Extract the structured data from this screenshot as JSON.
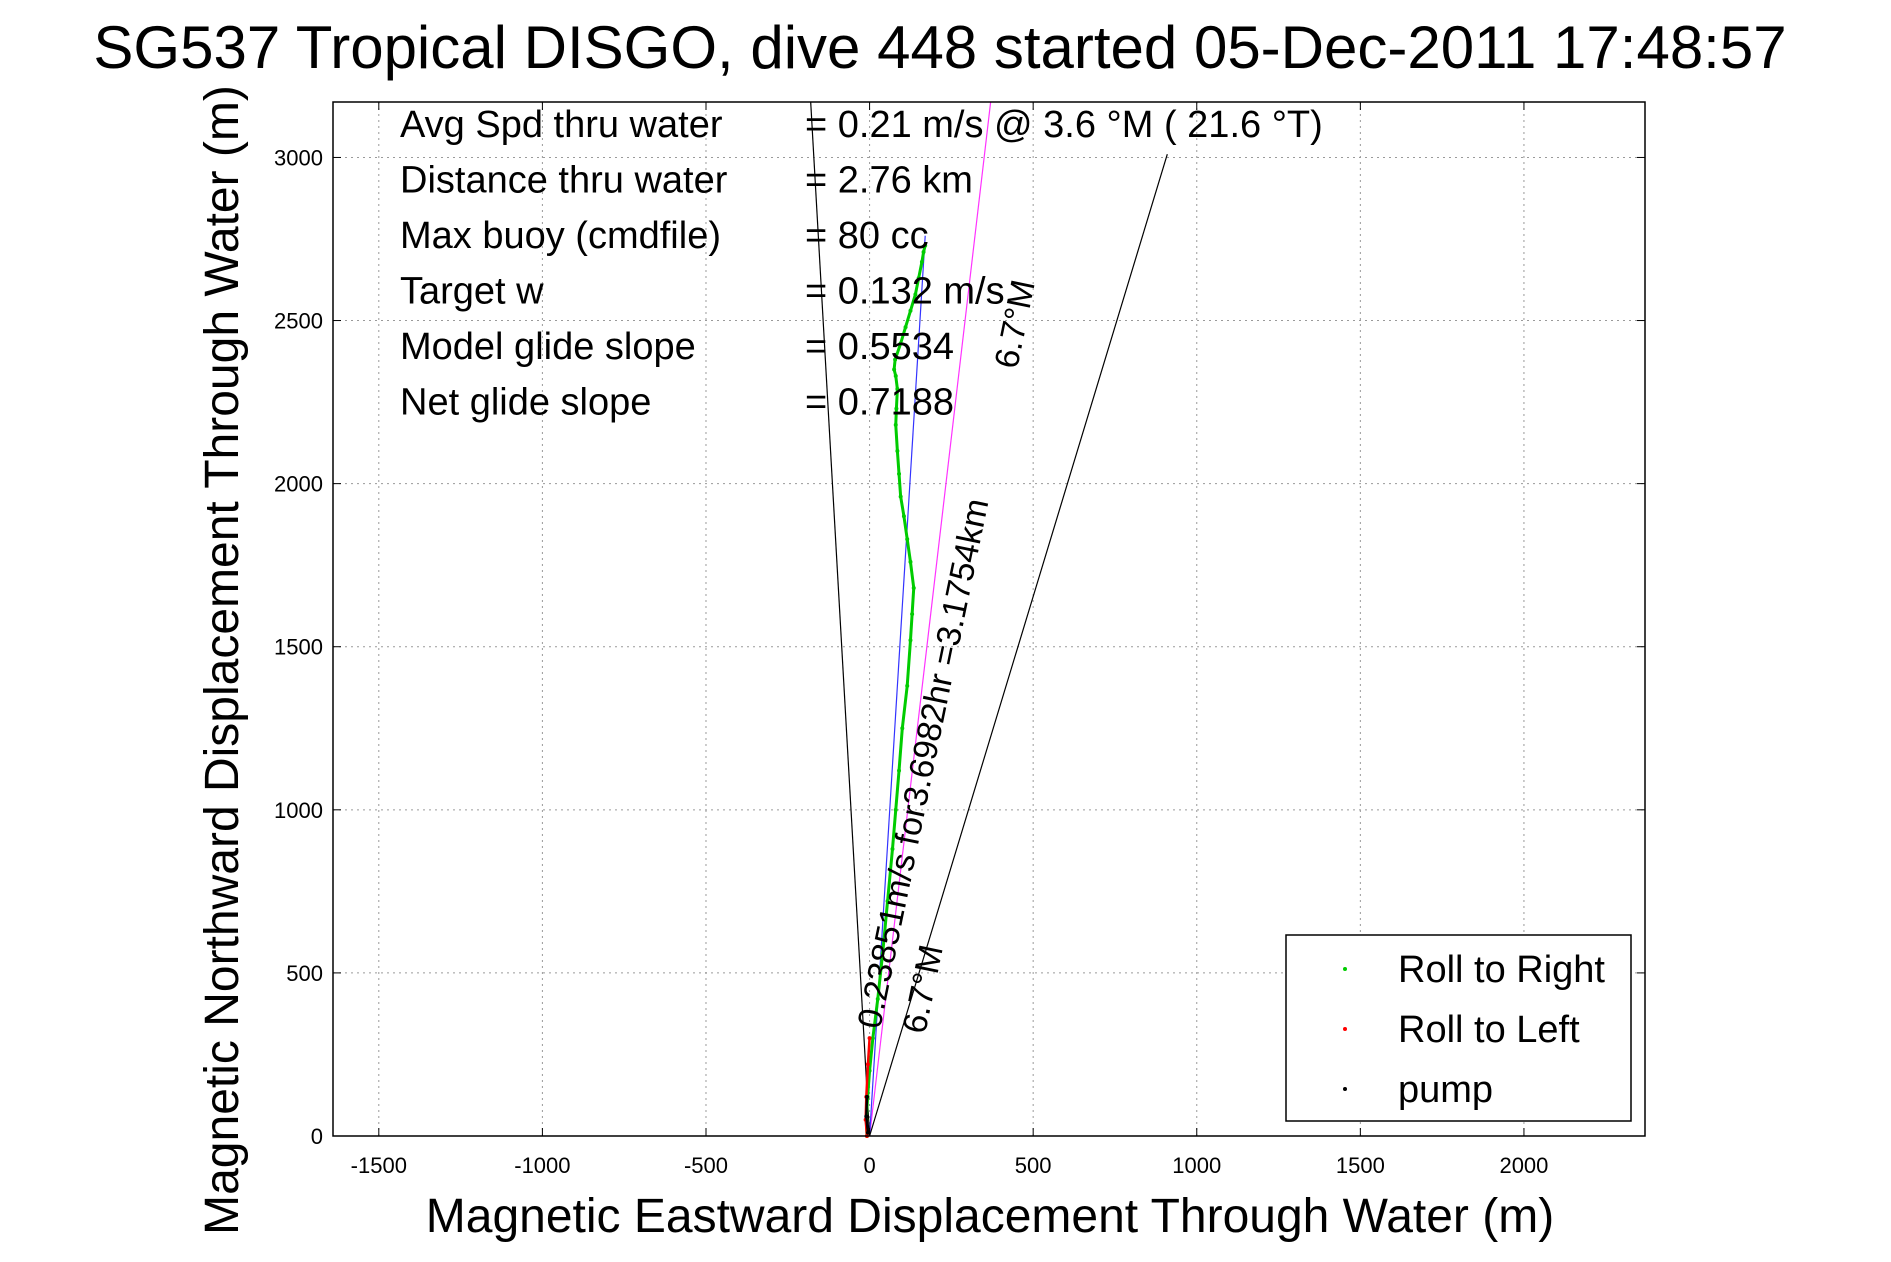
{
  "chart_data": {
    "type": "line",
    "title": "SG537 Tropical DISGO, dive 448 started 05-Dec-2011 17:48:57",
    "xlabel": "Magnetic Eastward Displacement Through Water (m)",
    "ylabel": "Magnetic Northward Displacement Through Water (m)",
    "xlim": [
      -1640,
      2370
    ],
    "ylim": [
      0,
      3170
    ],
    "xticks": [
      -1500,
      -1000,
      -500,
      0,
      500,
      1000,
      1500,
      2000
    ],
    "yticks": [
      0,
      500,
      1000,
      1500,
      2000,
      2500,
      3000
    ],
    "grid": true,
    "legend_position": "bottom-right",
    "info_lines": [
      {
        "label": "Avg Spd thru water",
        "value": "=  0.21 m/s @   3.6 °M ( 21.6 °T)"
      },
      {
        "label": "Distance thru water",
        "value": "=  2.76 km"
      },
      {
        "label": "Max buoy (cmdfile)",
        "value": "= 80 cc"
      },
      {
        "label": "Target w",
        "value": "= 0.132 m/s"
      },
      {
        "label": "Model glide slope",
        "value": "= 0.5534"
      },
      {
        "label": "Net glide slope",
        "value": "= 0.7188"
      }
    ],
    "annotations": {
      "speed": "0.23851m/s for3.6982hr =3.1754km",
      "heading_near": "6.7°M",
      "heading_far": "6.7°M"
    },
    "series": [
      {
        "name": "Roll to Right",
        "color": "#00cc00",
        "x": [
          -8,
          -10,
          -6,
          0,
          10,
          25,
          40,
          55,
          70,
          80,
          90,
          100,
          115,
          125,
          130,
          135,
          125,
          115,
          105,
          95,
          90,
          85,
          80,
          82,
          85,
          80,
          75,
          78,
          95,
          110,
          125,
          140,
          150,
          160,
          165,
          170
        ],
        "y": [
          0,
          50,
          120,
          200,
          300,
          420,
          560,
          720,
          880,
          1000,
          1120,
          1250,
          1380,
          1520,
          1600,
          1680,
          1760,
          1830,
          1900,
          1960,
          2030,
          2100,
          2180,
          2230,
          2290,
          2330,
          2350,
          2380,
          2430,
          2480,
          2530,
          2580,
          2630,
          2680,
          2710,
          2730
        ]
      },
      {
        "name": "Roll to Left",
        "color": "#ff0000",
        "x": [
          -8,
          -12,
          -10,
          -5,
          0
        ],
        "y": [
          0,
          50,
          120,
          220,
          300
        ]
      },
      {
        "name": "pump",
        "color": "#000000",
        "x": [
          -5,
          -10,
          -8
        ],
        "y": [
          10,
          60,
          120
        ]
      }
    ],
    "reference_lines": [
      {
        "x": [
          0,
          370
        ],
        "y": [
          0,
          3170
        ],
        "color": "#ff33ff"
      },
      {
        "x": [
          0,
          170
        ],
        "y": [
          0,
          2760
        ],
        "color": "#3333ff"
      },
      {
        "x": [
          0,
          910
        ],
        "y": [
          0,
          3010
        ],
        "color": "#000000"
      },
      {
        "x": [
          0,
          -180
        ],
        "y": [
          0,
          3170
        ],
        "color": "#000000"
      }
    ]
  }
}
